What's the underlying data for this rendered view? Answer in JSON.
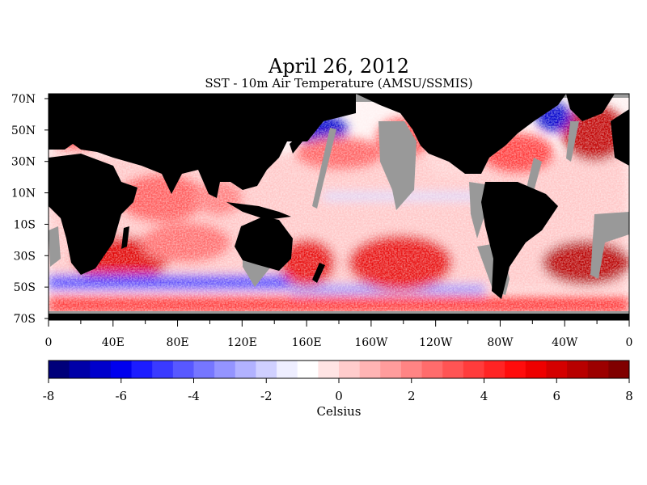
{
  "title": "April 26, 2012",
  "subtitle": "SST - 10m Air Temperature (AMSU/SSMIS)",
  "map": {
    "lat_labels": [
      "70N",
      "50N",
      "30N",
      "10N",
      "10S",
      "30S",
      "50S",
      "70S"
    ],
    "lon_labels": [
      "0",
      "40E",
      "80E",
      "120E",
      "160E",
      "160W",
      "120W",
      "80W",
      "40W",
      "0"
    ],
    "colors": {
      "land": "#000000",
      "no_data": "#999999",
      "ocean_background": "#ffffff"
    }
  },
  "colorbar": {
    "tick_labels": [
      "-8",
      "-6",
      "-4",
      "-2",
      "0",
      "2",
      "4",
      "6",
      "8"
    ],
    "unit_label": "Celsius",
    "range": [
      -8,
      8
    ],
    "colors": [
      "#00007a",
      "#0000a8",
      "#0000cc",
      "#0000ee",
      "#1c1cff",
      "#3a3aff",
      "#5858ff",
      "#7676ff",
      "#9494ff",
      "#b2b2ff",
      "#d0d0ff",
      "#eeeeff",
      "#ffffff",
      "#ffe4e4",
      "#ffcccc",
      "#ffb4b4",
      "#ff9c9c",
      "#ff8484",
      "#ff6c6c",
      "#ff5454",
      "#ff3c3c",
      "#ff2424",
      "#ff0c0c",
      "#ee0000",
      "#d40000",
      "#b80000",
      "#9c0000",
      "#800000"
    ]
  }
}
